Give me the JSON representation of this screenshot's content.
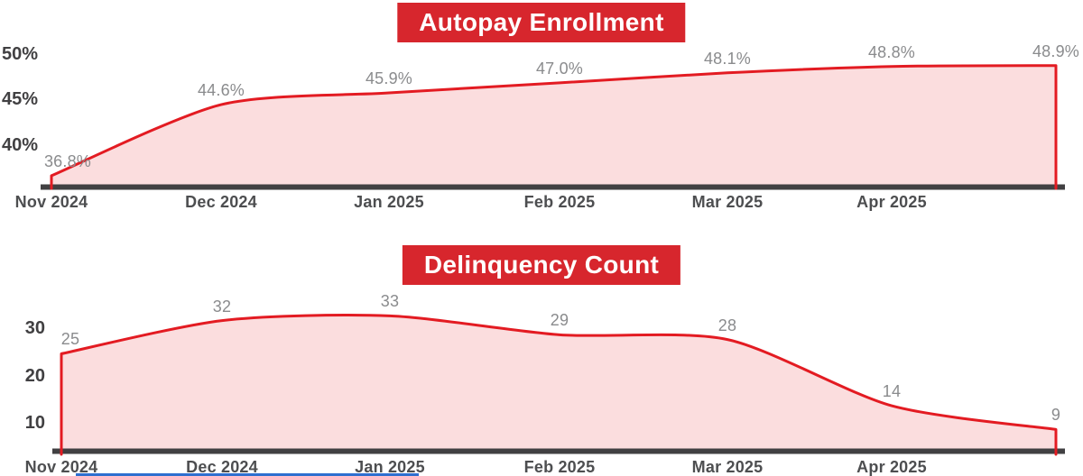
{
  "colors": {
    "background": "#ffffff",
    "banner_red": "#d7262d",
    "line_red": "#e31b22",
    "area_pink": "rgba(227,27,34,0.15)",
    "axis_dark": "#414042",
    "y_tick_text": "#414042",
    "x_tick_text": "#4d4e50",
    "data_label_text": "#8a8b8d",
    "title_text": "#ffffff",
    "bottom_bar_blue": "#2e6fd0"
  },
  "chart_data": [
    {
      "type": "area",
      "title": "Autopay Enrollment",
      "categories": [
        "Nov 2024",
        "Dec 2024",
        "Jan 2025",
        "Feb 2025",
        "Mar 2025",
        "Apr 2025",
        ""
      ],
      "x_tick_labels": [
        "Nov 2024",
        "Dec 2024",
        "Jan 2025",
        "Feb 2025",
        "Mar 2025",
        "Apr 2025"
      ],
      "values": [
        36.8,
        44.6,
        45.9,
        47.0,
        48.1,
        48.8,
        48.9
      ],
      "data_labels": [
        "36.8%",
        "44.6%",
        "45.9%",
        "47.0%",
        "48.1%",
        "48.8%",
        "48.9%"
      ],
      "y_ticks": [
        {
          "label": "50%",
          "value": 50
        },
        {
          "label": "45%",
          "value": 45
        },
        {
          "label": "40%",
          "value": 40
        }
      ],
      "ylabel": "",
      "xlabel": "",
      "ylim_visible": [
        35.7,
        50.5
      ],
      "grid": false,
      "legend": false
    },
    {
      "type": "area",
      "title": "Delinquency Count",
      "categories": [
        "Nov 2024",
        "Dec 2024",
        "Jan 2025",
        "Feb 2025",
        "Mar 2025",
        "Apr 2025",
        ""
      ],
      "x_tick_labels": [
        "Nov 2024",
        "Dec 2024",
        "Jan 2025",
        "Feb 2025",
        "Mar 2025",
        "Apr 2025"
      ],
      "values": [
        25,
        32,
        33,
        29,
        28,
        14,
        9
      ],
      "data_labels": [
        "25",
        "32",
        "33",
        "29",
        "28",
        "14",
        "9"
      ],
      "y_ticks": [
        {
          "label": "30",
          "value": 30
        },
        {
          "label": "20",
          "value": 20
        },
        {
          "label": "10",
          "value": 10
        }
      ],
      "ylabel": "",
      "xlabel": "",
      "ylim_visible": [
        4.3,
        34
      ],
      "grid": false,
      "legend": false
    }
  ]
}
